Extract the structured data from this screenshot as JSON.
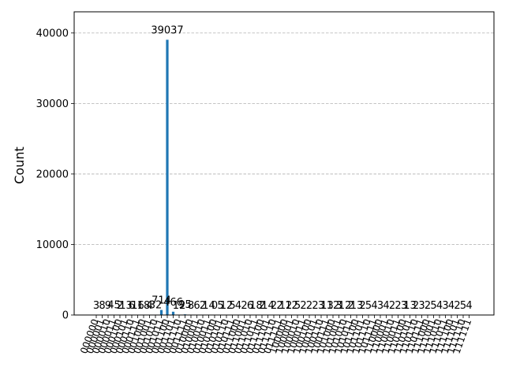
{
  "chart_data": {
    "type": "bar",
    "ylabel": "Count",
    "ylim": [
      0,
      43000
    ],
    "yticks": [
      0,
      10000,
      20000,
      30000,
      40000
    ],
    "grid": "y-dashed",
    "bar_color": "#1f77b4",
    "categories": [
      "000000",
      "000001",
      "000010",
      "000011",
      "000100",
      "000101",
      "000110",
      "000111",
      "001000",
      "001001",
      "001010",
      "001011",
      "001100",
      "001101",
      "001110",
      "001111",
      "010000",
      "010001",
      "010010",
      "010011",
      "010100",
      "010101",
      "010110",
      "010111",
      "011000",
      "011001",
      "011010",
      "011011",
      "011100",
      "011101",
      "011110",
      "011111",
      "100000",
      "100001",
      "100010",
      "100011",
      "100100",
      "100101",
      "100110",
      "100111",
      "101000",
      "101001",
      "101010",
      "101011",
      "101100",
      "101101",
      "101110",
      "101111",
      "110000",
      "110001",
      "110010",
      "110011",
      "110100",
      "110101",
      "110110",
      "110111",
      "111000",
      "111001",
      "111010",
      "111011",
      "111100",
      "111101",
      "111110",
      "111111"
    ],
    "values": [
      3,
      8,
      9,
      45,
      2,
      13,
      6,
      16,
      18,
      4,
      32,
      714,
      39037,
      466,
      12,
      95,
      8,
      6,
      2,
      14,
      0,
      5,
      12,
      5,
      4,
      2,
      6,
      18,
      2,
      14,
      2,
      2,
      12,
      12,
      5,
      2,
      2,
      2,
      3,
      13,
      12,
      3,
      12,
      2,
      13,
      2,
      5,
      4,
      3,
      4,
      2,
      2,
      3,
      13,
      2,
      3,
      2,
      5,
      4,
      3,
      4,
      2,
      5,
      4
    ]
  }
}
